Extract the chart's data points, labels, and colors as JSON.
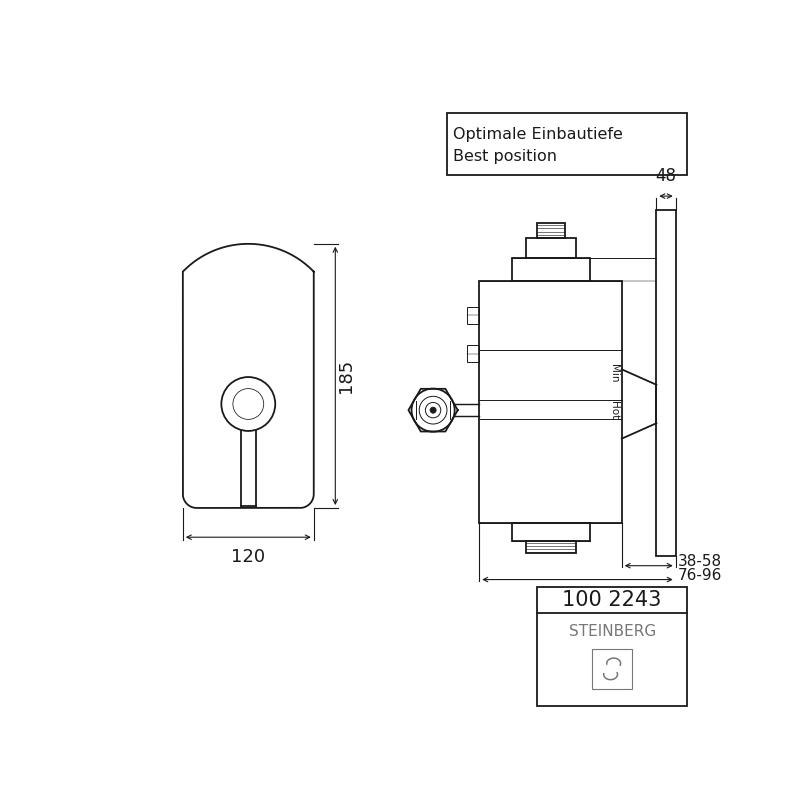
{
  "bg_color": "#ffffff",
  "line_color": "#1a1a1a",
  "line_width": 1.3,
  "thin_line": 0.7,
  "dim_line": 0.8,
  "title_box_text1": "Optimale Einbautiefe",
  "title_box_text2": "Best position",
  "product_code": "100 2243",
  "brand": "STEINBERG",
  "dim_120": "120",
  "dim_185": "185",
  "dim_48": "48",
  "dim_38_58": "38-58",
  "dim_76_96": "76-96",
  "label_min": "Min",
  "label_hot": "Hot"
}
